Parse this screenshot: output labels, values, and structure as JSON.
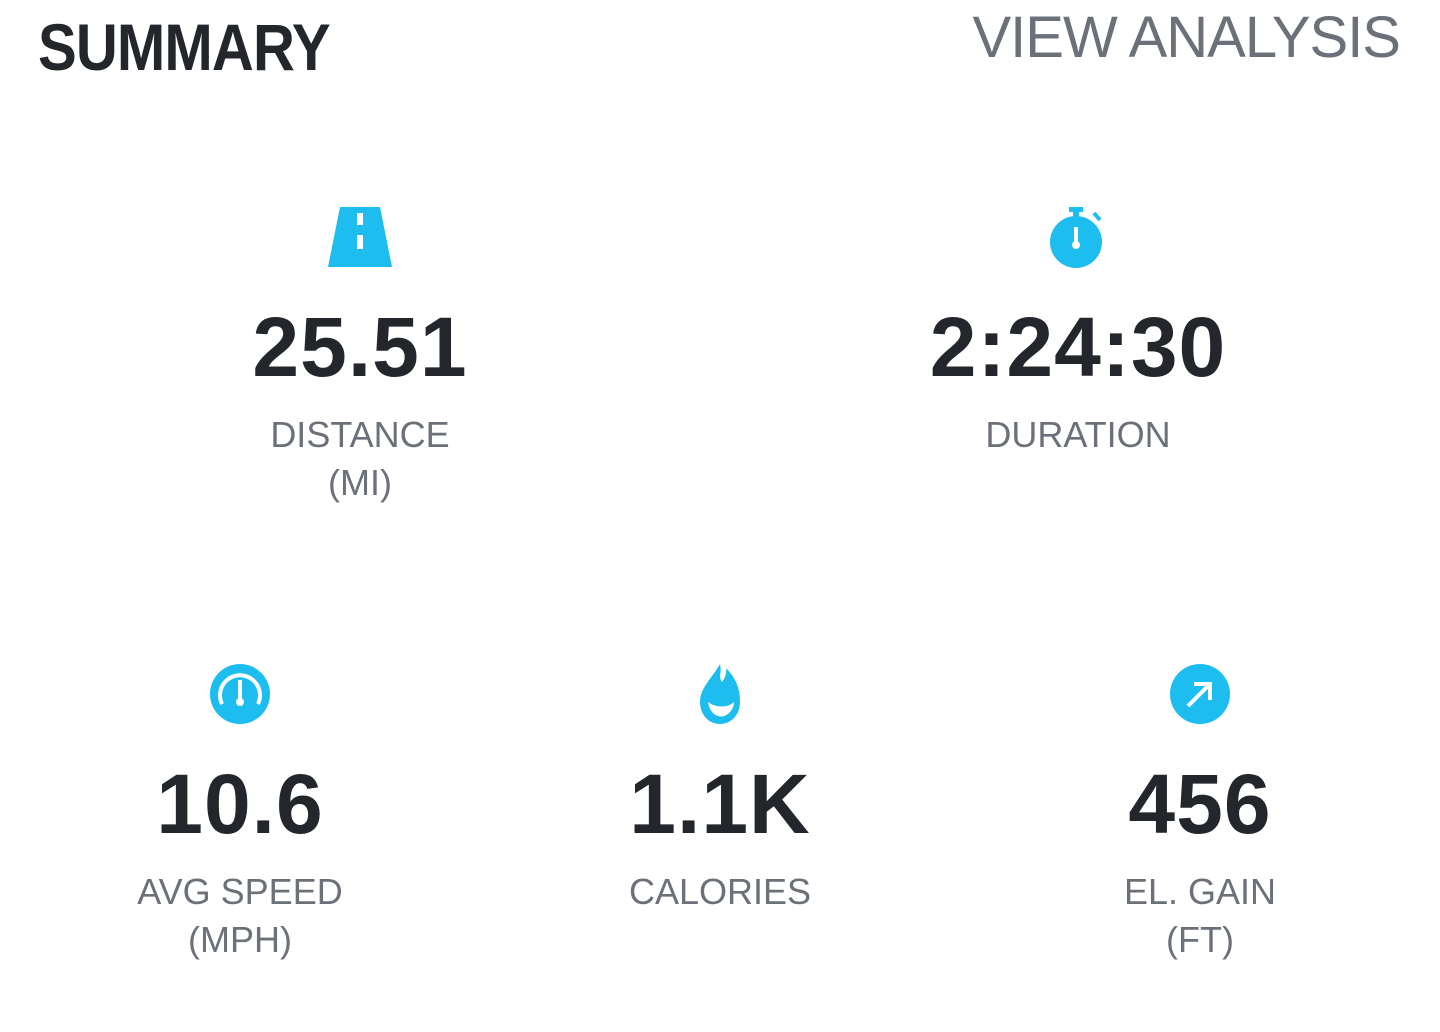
{
  "header": {
    "title": "SUMMARY",
    "action_label": "VIEW ANALYSIS"
  },
  "colors": {
    "accent": "#1ebdf0",
    "value_text": "#23262a",
    "label_text": "#6b7079"
  },
  "stats": {
    "distance": {
      "icon": "road-icon",
      "value": "25.51",
      "label": "DISTANCE",
      "unit": "(MI)"
    },
    "duration": {
      "icon": "stopwatch-icon",
      "value": "2:24:30",
      "label": "DURATION",
      "unit": ""
    },
    "avg_speed": {
      "icon": "speedometer-icon",
      "value": "10.6",
      "label": "AVG SPEED",
      "unit": "(MPH)"
    },
    "calories": {
      "icon": "flame-icon",
      "value": "1.1K",
      "label": "CALORIES",
      "unit": ""
    },
    "elevation": {
      "icon": "elevation-arrow-icon",
      "value": "456",
      "label": "EL. GAIN",
      "unit": "(FT)"
    }
  }
}
